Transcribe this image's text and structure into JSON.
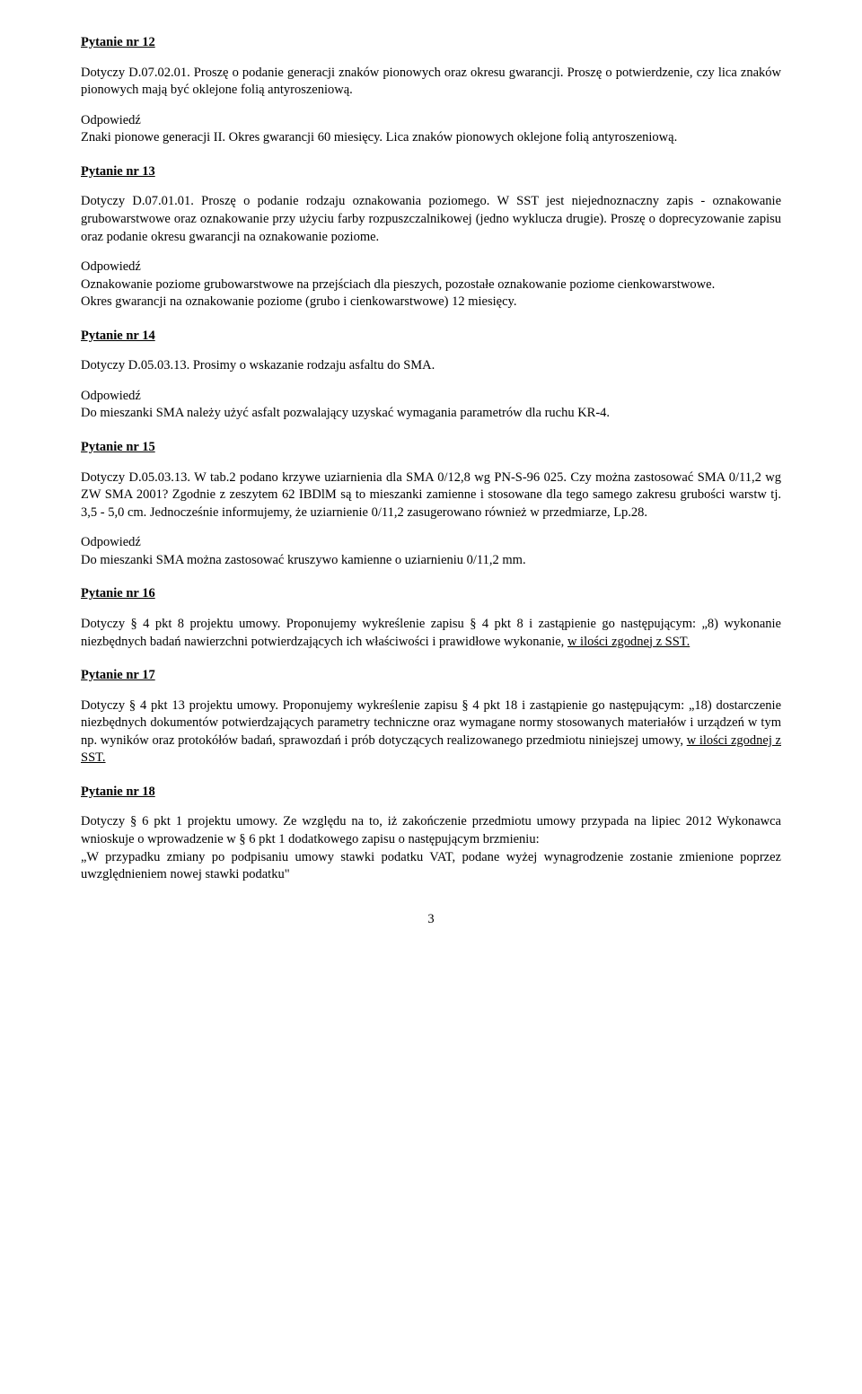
{
  "answer_label": "Odpowiedź",
  "q12": {
    "heading": "Pytanie nr 12",
    "body": "Dotyczy D.07.02.01. Proszę o podanie generacji znaków pionowych oraz okresu gwarancji. Proszę o potwierdzenie, czy lica znaków pionowych mają być oklejone folią antyroszeniową.",
    "answer": "Znaki pionowe generacji II. Okres gwarancji 60 miesięcy. Lica znaków pionowych oklejone folią antyroszeniową."
  },
  "q13": {
    "heading": "Pytanie nr 13",
    "body": "Dotyczy D.07.01.01. Proszę o podanie rodzaju oznakowania poziomego. W SST jest niejednoznaczny zapis - oznakowanie grubowarstwowe oraz oznakowanie przy użyciu farby rozpuszczalnikowej (jedno wyklucza drugie). Proszę o doprecyzowanie zapisu oraz podanie okresu gwarancji na oznakowanie poziome.",
    "answer_l1": "Oznakowanie poziome grubowarstwowe na przejściach dla pieszych, pozostałe oznakowanie poziome cienkowarstwowe.",
    "answer_l2": "Okres gwarancji na oznakowanie poziome (grubo i cienkowarstwowe) 12 miesięcy."
  },
  "q14": {
    "heading": "Pytanie nr 14",
    "body": "Dotyczy D.05.03.13. Prosimy o wskazanie rodzaju asfaltu do SMA.",
    "answer": "Do mieszanki SMA należy użyć asfalt pozwalający uzyskać wymagania parametrów dla ruchu KR-4."
  },
  "q15": {
    "heading": "Pytanie nr 15",
    "body": "Dotyczy D.05.03.13. W tab.2 podano krzywe uziarnienia dla SMA 0/12,8 wg PN-S-96 025. Czy można zastosować SMA 0/11,2 wg ZW SMA 2001? Zgodnie z zeszytem 62 IBDlM są to mieszanki zamienne i stosowane dla tego samego zakresu grubości warstw tj. 3,5 - 5,0 cm. Jednocześnie informujemy, że uziarnienie 0/11,2 zasugerowano również w przedmiarze, Lp.28.",
    "answer": "Do mieszanki SMA można zastosować kruszywo kamienne o uziarnieniu 0/11,2 mm."
  },
  "q16": {
    "heading": "Pytanie nr 16",
    "body_pre": "Dotyczy § 4 pkt 8 projektu umowy. Proponujemy wykreślenie zapisu § 4 pkt 8 i zastąpienie go następującym: „8) wykonanie niezbędnych badań nawierzchni potwierdzających ich właściwości i prawidłowe wykonanie, ",
    "body_under": "w ilości zgodnej z SST."
  },
  "q17": {
    "heading": "Pytanie nr 17",
    "body_pre": "Dotyczy § 4 pkt 13 projektu umowy. Proponujemy wykreślenie zapisu § 4 pkt 18 i zastąpienie go następującym: „18) dostarczenie niezbędnych dokumentów potwierdzających parametry techniczne oraz wymagane normy stosowanych materiałów i urządzeń w tym np. wyników oraz protokółów badań, sprawozdań i prób dotyczących realizowanego przedmiotu niniejszej umowy, ",
    "body_under": "w ilości zgodnej z SST."
  },
  "q18": {
    "heading": "Pytanie nr 18",
    "body_l1": "Dotyczy § 6 pkt 1 projektu umowy. Ze względu na to, iż zakończenie przedmiotu umowy przypada na lipiec 2012 Wykonawca wnioskuje o wprowadzenie w § 6 pkt 1 dodatkowego zapisu o następującym brzmieniu:",
    "body_l2": "„W przypadku zmiany po podpisaniu umowy stawki podatku VAT, podane wyżej wynagrodzenie zostanie zmienione poprzez uwzględnieniem nowej stawki podatku\""
  },
  "page_number": "3"
}
